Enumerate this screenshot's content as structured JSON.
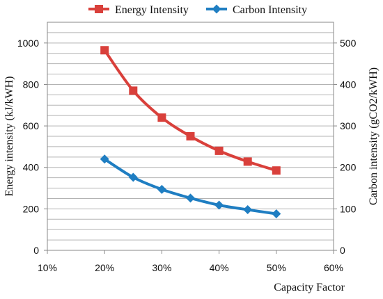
{
  "chart_data": {
    "type": "line",
    "title": "",
    "xlabel": "Capacity Factor",
    "ylabel": "Energy intensity (kJ/kWH)",
    "y2label": "Carbon intensity (gCO2/kWH)",
    "x": [
      20,
      25,
      30,
      35,
      40,
      45,
      50
    ],
    "xlim": [
      10,
      60
    ],
    "xticks": [
      10,
      20,
      30,
      40,
      50,
      60
    ],
    "xtick_labels": [
      "10%",
      "20%",
      "30%",
      "40%",
      "50%",
      "60%"
    ],
    "ylim": [
      0,
      1100
    ],
    "yticks": [
      0,
      200,
      400,
      600,
      800,
      1000
    ],
    "y2lim": [
      0,
      550
    ],
    "y2ticks": [
      0,
      100,
      200,
      300,
      400,
      500
    ],
    "grid": true,
    "legend_position": "top",
    "series": [
      {
        "name": "Energy Intensity",
        "axis": "left",
        "color": "#d9403b",
        "marker": "square",
        "values": [
          965,
          770,
          640,
          550,
          480,
          428,
          385
        ]
      },
      {
        "name": "Carbon Intensity",
        "axis": "right",
        "color": "#1f7ec2",
        "marker": "diamond",
        "values": [
          220,
          176,
          147,
          126,
          109,
          98,
          88
        ]
      }
    ]
  }
}
